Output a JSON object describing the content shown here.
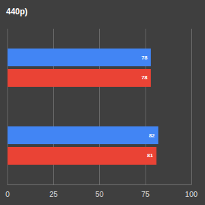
{
  "chart_data": {
    "type": "bar",
    "orientation": "horizontal",
    "title": "440p)",
    "categories": [
      null,
      null
    ],
    "series": [
      {
        "color": "#4285f4",
        "values": [
          78,
          82
        ]
      },
      {
        "color": "#ea4335",
        "values": [
          78,
          81
        ]
      }
    ],
    "xlim": [
      0,
      100
    ],
    "xticks": [
      0,
      25,
      50,
      75,
      100
    ],
    "grid": true,
    "data_labels": true
  }
}
